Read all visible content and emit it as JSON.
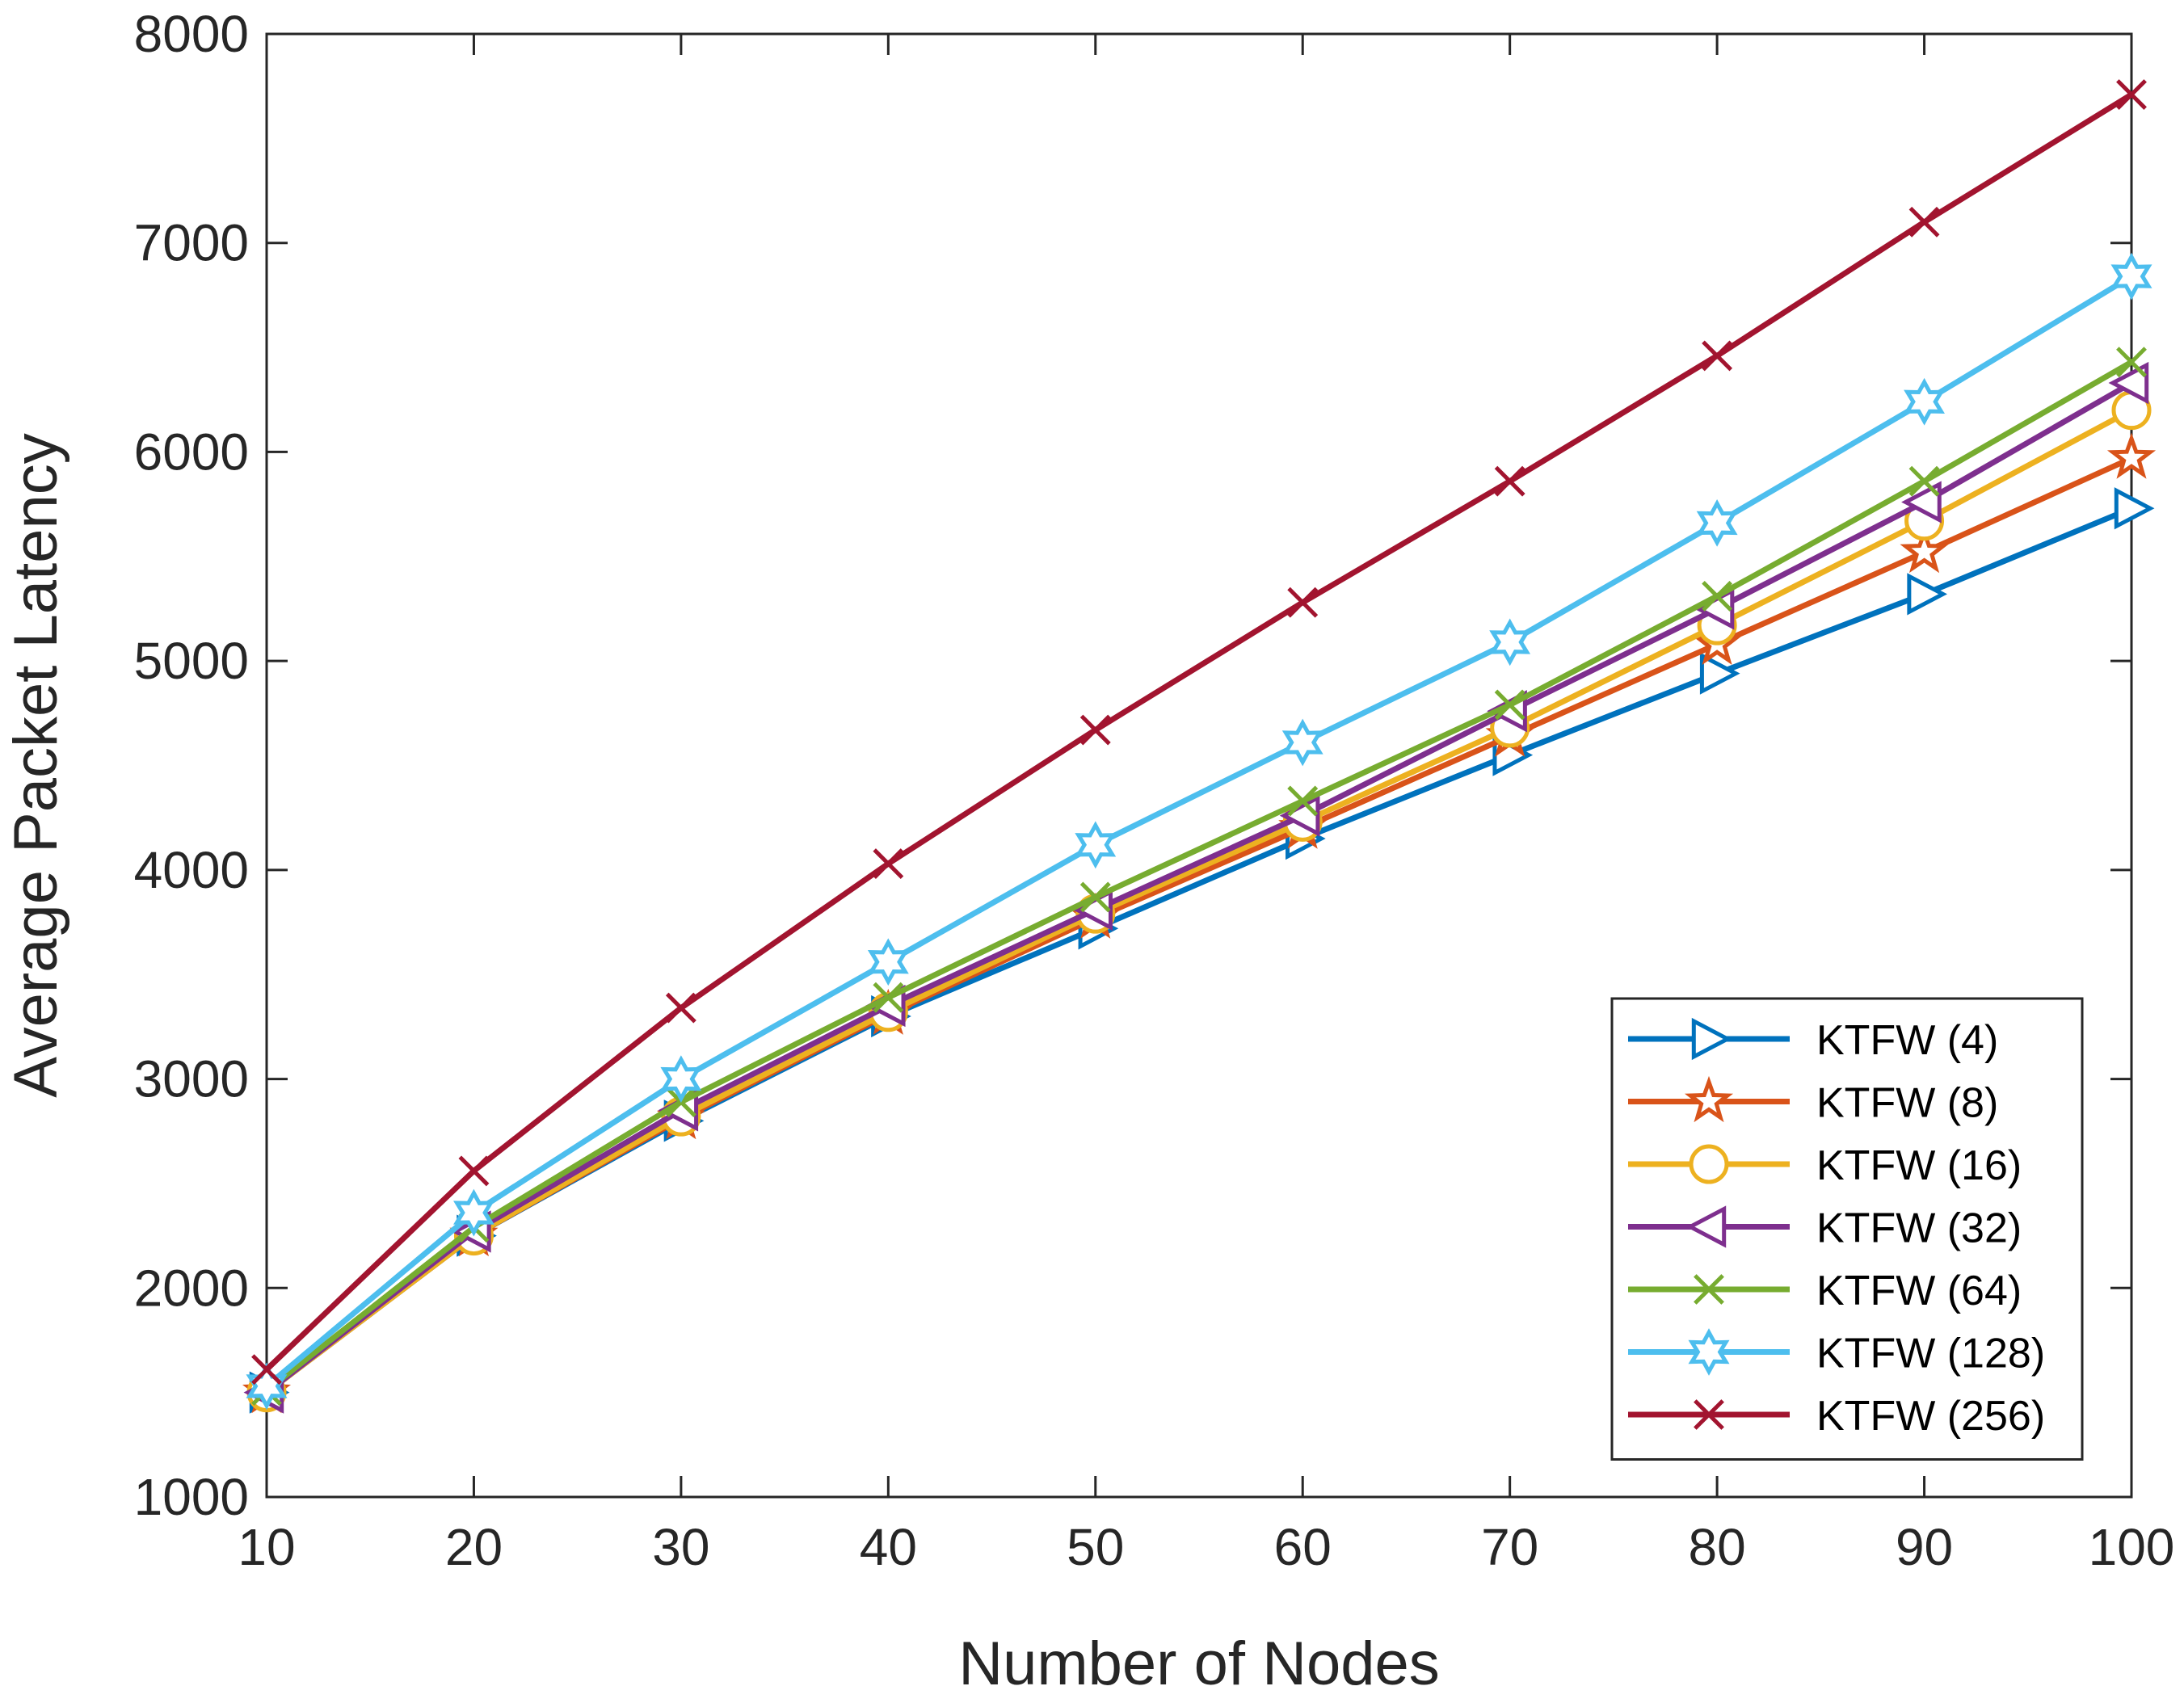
{
  "chart_data": {
    "type": "line",
    "title": "",
    "xlabel": "Number of Nodes",
    "ylabel": "Average Packet Latency",
    "x": [
      10,
      20,
      30,
      40,
      50,
      60,
      70,
      80,
      90,
      100
    ],
    "xlim": [
      10,
      100
    ],
    "ylim": [
      1000,
      8000
    ],
    "xticks": [
      "10",
      "20",
      "30",
      "40",
      "50",
      "60",
      "70",
      "80",
      "90",
      "100"
    ],
    "yticks": [
      "1000",
      "2000",
      "3000",
      "4000",
      "5000",
      "6000",
      "7000",
      "8000"
    ],
    "grid": false,
    "legend_position": "bottom-right",
    "series": [
      {
        "name": "KTFW (4)",
        "color": "#0072BD",
        "marker": "triangle-right",
        "values": [
          1500,
          2250,
          2800,
          3300,
          3720,
          4150,
          4550,
          4940,
          5320,
          5730
        ]
      },
      {
        "name": "KTFW (8)",
        "color": "#D95319",
        "marker": "star",
        "values": [
          1500,
          2250,
          2810,
          3310,
          3770,
          4200,
          4640,
          5080,
          5520,
          5970
        ]
      },
      {
        "name": "KTFW (16)",
        "color": "#EDB120",
        "marker": "circle",
        "values": [
          1500,
          2250,
          2820,
          3320,
          3790,
          4230,
          4680,
          5170,
          5670,
          6200
        ]
      },
      {
        "name": "KTFW (32)",
        "color": "#7E2F8E",
        "marker": "triangle-left",
        "values": [
          1500,
          2270,
          2850,
          3350,
          3810,
          4260,
          4760,
          5250,
          5760,
          6330
        ]
      },
      {
        "name": "KTFW (64)",
        "color": "#77AC30",
        "marker": "x",
        "values": [
          1510,
          2290,
          2890,
          3390,
          3870,
          4330,
          4790,
          5310,
          5860,
          6430
        ]
      },
      {
        "name": "KTFW (128)",
        "color": "#4DBEEE",
        "marker": "hexagram",
        "values": [
          1530,
          2360,
          3000,
          3560,
          4120,
          4610,
          5090,
          5660,
          6240,
          6840
        ]
      },
      {
        "name": "KTFW (256)",
        "color": "#A2142F",
        "marker": "x",
        "values": [
          1610,
          2560,
          3340,
          4030,
          4670,
          5280,
          5860,
          6460,
          7100,
          7710
        ]
      }
    ]
  }
}
